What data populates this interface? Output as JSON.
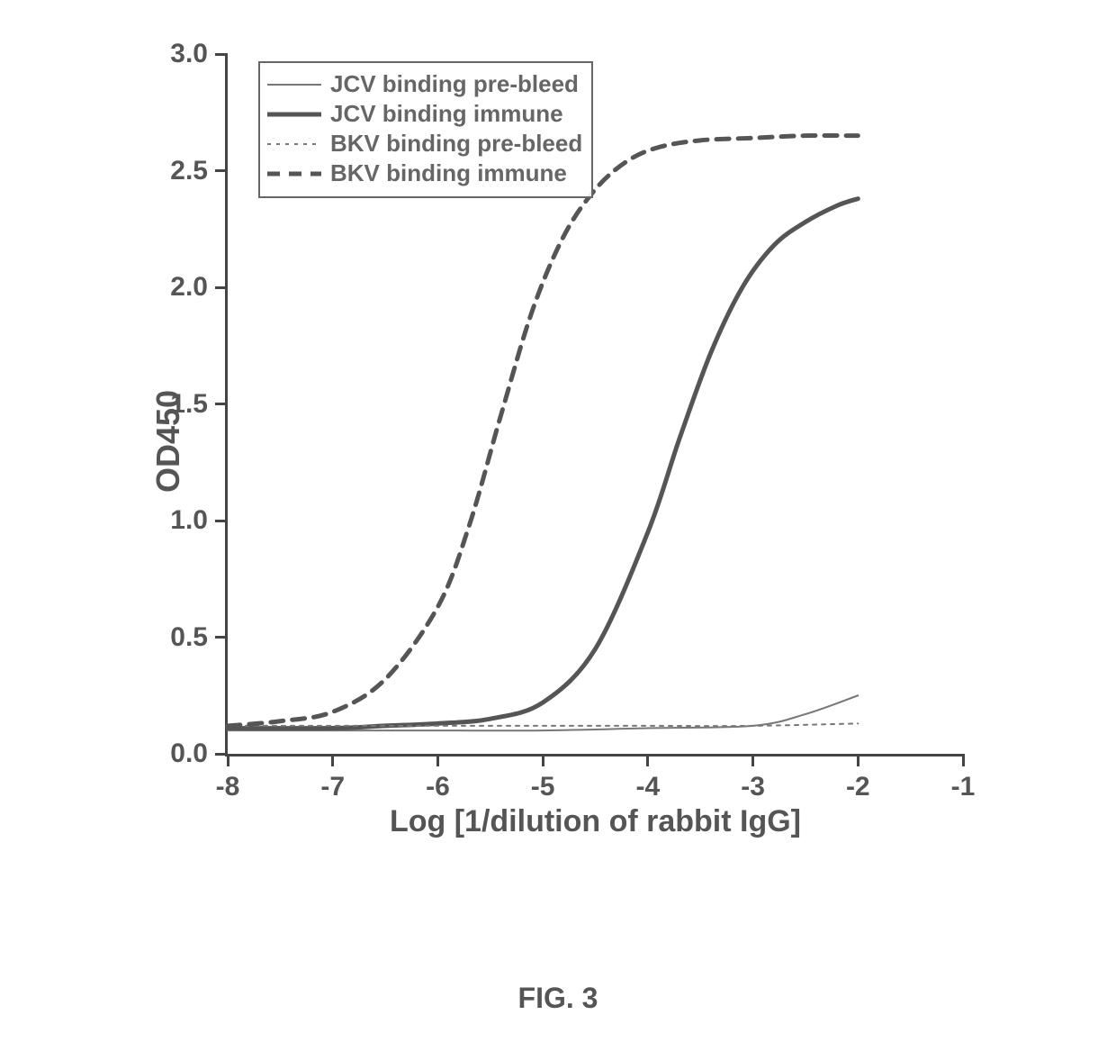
{
  "chart": {
    "type": "line",
    "xlabel": "Log [1/dilution of rabbit IgG]",
    "ylabel": "OD450",
    "title_fontsize": 34,
    "label_fontsize": 30,
    "xlim": [
      -8,
      -1
    ],
    "ylim": [
      0,
      3.0
    ],
    "xticks": [
      -8,
      -7,
      -6,
      -5,
      -4,
      -3,
      -2,
      -1
    ],
    "yticks": [
      0.0,
      0.5,
      1.0,
      1.5,
      2.0,
      2.5,
      3.0
    ],
    "ytick_labels": [
      "0.0",
      "0.5",
      "1.0",
      "1.5",
      "2.0",
      "2.5",
      "3.0"
    ],
    "background_color": "#ffffff",
    "axis_color": "#444444",
    "text_color": "#555555",
    "line_width_thin": 2,
    "line_width_thick": 5,
    "series": [
      {
        "name": "JCV binding pre-bleed",
        "color": "#777777",
        "width": 2,
        "dash": "none",
        "points": [
          [
            -8,
            0.1
          ],
          [
            -7,
            0.1
          ],
          [
            -6,
            0.1
          ],
          [
            -5,
            0.1
          ],
          [
            -4,
            0.11
          ],
          [
            -3,
            0.12
          ],
          [
            -2.5,
            0.17
          ],
          [
            -2,
            0.25
          ]
        ]
      },
      {
        "name": "JCV binding immune",
        "color": "#555555",
        "width": 5,
        "dash": "none",
        "points": [
          [
            -8,
            0.11
          ],
          [
            -7,
            0.11
          ],
          [
            -6.5,
            0.12
          ],
          [
            -6,
            0.13
          ],
          [
            -5.5,
            0.15
          ],
          [
            -5,
            0.22
          ],
          [
            -4.5,
            0.45
          ],
          [
            -4,
            0.95
          ],
          [
            -3.7,
            1.35
          ],
          [
            -3.4,
            1.72
          ],
          [
            -3.1,
            2.0
          ],
          [
            -2.8,
            2.18
          ],
          [
            -2.5,
            2.28
          ],
          [
            -2.2,
            2.35
          ],
          [
            -2,
            2.38
          ]
        ]
      },
      {
        "name": "BKV binding pre-bleed",
        "color": "#777777",
        "width": 2,
        "dash": "4,6",
        "points": [
          [
            -8,
            0.12
          ],
          [
            -7,
            0.12
          ],
          [
            -6,
            0.12
          ],
          [
            -5,
            0.12
          ],
          [
            -4,
            0.12
          ],
          [
            -3,
            0.12
          ],
          [
            -2,
            0.13
          ]
        ]
      },
      {
        "name": "BKV binding immune",
        "color": "#555555",
        "width": 5,
        "dash": "14,10",
        "points": [
          [
            -8,
            0.12
          ],
          [
            -7.5,
            0.14
          ],
          [
            -7,
            0.18
          ],
          [
            -6.5,
            0.32
          ],
          [
            -6,
            0.63
          ],
          [
            -5.7,
            0.98
          ],
          [
            -5.4,
            1.45
          ],
          [
            -5.1,
            1.9
          ],
          [
            -4.8,
            2.22
          ],
          [
            -4.5,
            2.42
          ],
          [
            -4.2,
            2.54
          ],
          [
            -3.9,
            2.6
          ],
          [
            -3.5,
            2.63
          ],
          [
            -3,
            2.64
          ],
          [
            -2.5,
            2.65
          ],
          [
            -2,
            2.65
          ]
        ]
      }
    ],
    "legend": {
      "position": "top-left",
      "border_color": "#666666",
      "items": [
        "JCV binding pre-bleed",
        "JCV binding immune",
        "BKV binding pre-bleed",
        "BKV binding immune"
      ]
    }
  },
  "caption": "FIG. 3"
}
